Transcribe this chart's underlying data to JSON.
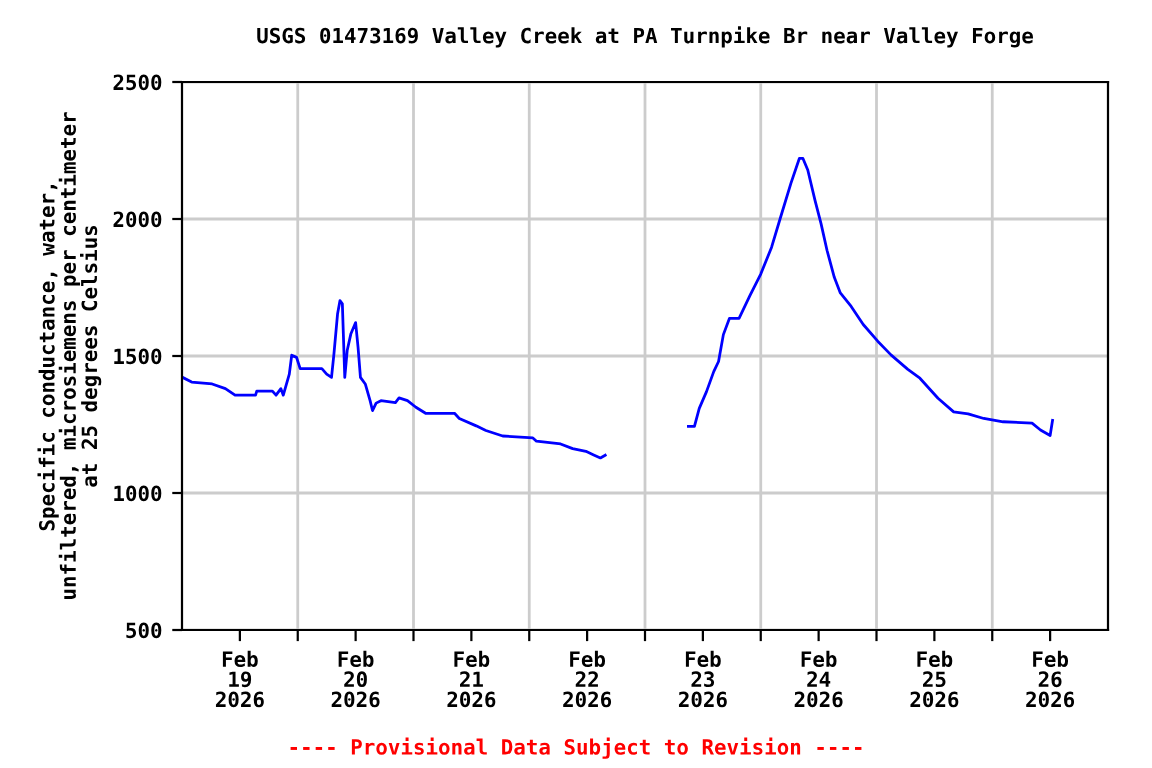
{
  "chart_data": {
    "type": "line",
    "title": "USGS 01473169 Valley Creek at PA Turnpike Br near Valley Forge",
    "ylabel": "Specific conductance, water,\nunfiltered, microsiemens per centimeter\nat 25 degrees Celsius",
    "annotations": [
      "---- Provisional Data Subject to Revision ----"
    ],
    "x": [
      "2026-02-19T00:00",
      "2026-02-19T02:00",
      "2026-02-19T06:15",
      "2026-02-19T09:00",
      "2026-02-19T11:00",
      "2026-02-19T15:15",
      "2026-02-19T15:30",
      "2026-02-19T18:45",
      "2026-02-19T19:30",
      "2026-02-19T20:30",
      "2026-02-19T21:00",
      "2026-02-19T22:15",
      "2026-02-19T22:45",
      "2026-02-19T23:45",
      "2026-02-20T00:30",
      "2026-02-20T05:00",
      "2026-02-20T06:00",
      "2026-02-20T07:00",
      "2026-02-20T07:30",
      "2026-02-20T08:15",
      "2026-02-20T08:45",
      "2026-02-20T09:15",
      "2026-02-20T09:45",
      "2026-02-20T10:15",
      "2026-02-20T11:00",
      "2026-02-20T12:00",
      "2026-02-20T12:30",
      "2026-02-20T13:00",
      "2026-02-20T14:00",
      "2026-02-20T15:00",
      "2026-02-20T15:30",
      "2026-02-20T16:15",
      "2026-02-20T17:15",
      "2026-02-20T20:15",
      "2026-02-20T21:00",
      "2026-02-20T22:45",
      "2026-02-21T00:30",
      "2026-02-21T02:30",
      "2026-02-21T08:30",
      "2026-02-21T09:30",
      "2026-02-21T13:00",
      "2026-02-21T15:00",
      "2026-02-21T18:30",
      "2026-02-22T00:45",
      "2026-02-22T01:30",
      "2026-02-22T06:30",
      "2026-02-22T09:00",
      "2026-02-22T11:45",
      "2026-02-22T13:15",
      "2026-02-22T14:45",
      "2026-02-22T15:45",
      "2026-02-23T00:00",
      "2026-02-23T09:00",
      "2026-02-23T10:15",
      "2026-02-23T11:15",
      "2026-02-23T12:45",
      "2026-02-23T14:15",
      "2026-02-23T15:15",
      "2026-02-23T16:15",
      "2026-02-23T17:30",
      "2026-02-23T19:30",
      "2026-02-23T21:45",
      "2026-02-24T00:00",
      "2026-02-24T02:15",
      "2026-02-24T04:00",
      "2026-02-24T06:15",
      "2026-02-24T08:00",
      "2026-02-24T08:45",
      "2026-02-24T09:45",
      "2026-02-24T11:15",
      "2026-02-24T12:30",
      "2026-02-24T13:45",
      "2026-02-24T15:15",
      "2026-02-24T16:30",
      "2026-02-24T18:45",
      "2026-02-24T21:15",
      "2026-02-25T00:15",
      "2026-02-25T03:00",
      "2026-02-25T06:30",
      "2026-02-25T09:00",
      "2026-02-25T12:45",
      "2026-02-25T16:00",
      "2026-02-25T19:00",
      "2026-02-25T22:15",
      "2026-02-26T02:15",
      "2026-02-26T08:15",
      "2026-02-26T10:00",
      "2026-02-26T12:00",
      "2026-02-26T12:30"
    ],
    "series": [
      {
        "color": "#0000ff",
        "values": [
          1423,
          1405,
          1398,
          1381,
          1357,
          1357,
          1372,
          1372,
          1357,
          1381,
          1357,
          1434,
          1503,
          1495,
          1454,
          1454,
          1434,
          1422,
          1507,
          1653,
          1702,
          1690,
          1422,
          1520,
          1580,
          1622,
          1532,
          1422,
          1398,
          1337,
          1301,
          1328,
          1337,
          1330,
          1347,
          1337,
          1313,
          1291,
          1291,
          1272,
          1245,
          1228,
          1208,
          1201,
          1189,
          1179,
          1162,
          1152,
          1140,
          1128,
          1138,
          null,
          1243,
          1243,
          1309,
          1370,
          1443,
          1480,
          1578,
          1637,
          1637,
          1720,
          1799,
          1897,
          2000,
          2130,
          2221,
          2221,
          2179,
          2068,
          1983,
          1885,
          1787,
          1730,
          1681,
          1615,
          1554,
          1504,
          1451,
          1419,
          1346,
          1296,
          1289,
          1272,
          1260,
          1255,
          1230,
          1210,
          1265
        ]
      }
    ],
    "xlim": [
      "2026-02-19T00:00",
      "2026-02-27T00:00"
    ],
    "xticks": [
      {
        "value": "2026-02-19T12:00",
        "label": "Feb\n19\n2026"
      },
      {
        "value": "2026-02-20T00:00",
        "label": null
      },
      {
        "value": "2026-02-20T12:00",
        "label": "Feb\n20\n2026"
      },
      {
        "value": "2026-02-21T00:00",
        "label": null
      },
      {
        "value": "2026-02-21T12:00",
        "label": "Feb\n21\n2026"
      },
      {
        "value": "2026-02-22T00:00",
        "label": null
      },
      {
        "value": "2026-02-22T12:00",
        "label": "Feb\n22\n2026"
      },
      {
        "value": "2026-02-23T00:00",
        "label": null
      },
      {
        "value": "2026-02-23T12:00",
        "label": "Feb\n23\n2026"
      },
      {
        "value": "2026-02-24T00:00",
        "label": null
      },
      {
        "value": "2026-02-24T12:00",
        "label": "Feb\n24\n2026"
      },
      {
        "value": "2026-02-25T00:00",
        "label": null
      },
      {
        "value": "2026-02-25T12:00",
        "label": "Feb\n25\n2026"
      },
      {
        "value": "2026-02-26T00:00",
        "label": null
      },
      {
        "value": "2026-02-26T12:00",
        "label": "Feb\n26\n2026"
      }
    ],
    "ylim": [
      500,
      2500
    ],
    "yticks": [
      500,
      1000,
      1500,
      2000,
      2500
    ],
    "grid": true,
    "legend": false,
    "marker": "none",
    "line_style": "solid"
  }
}
